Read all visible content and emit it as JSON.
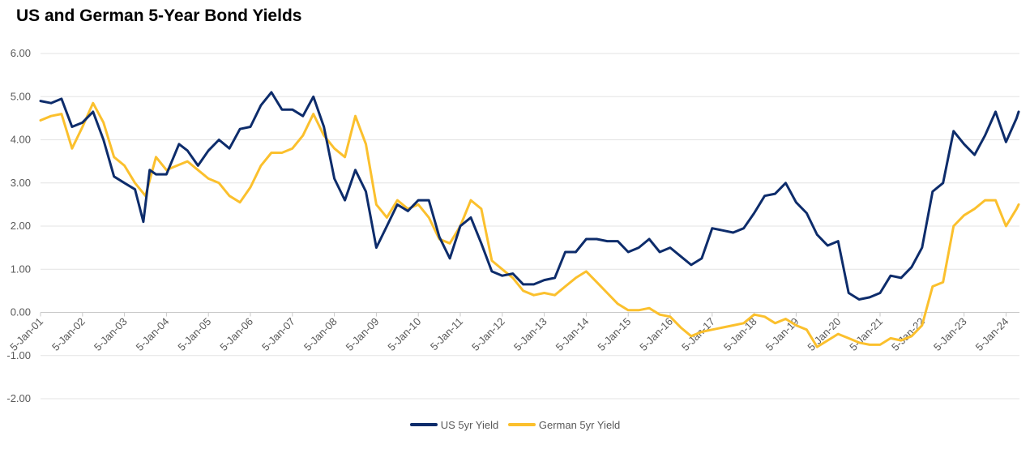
{
  "chart_data": {
    "type": "line",
    "title": "US and German 5-Year Bond Yields",
    "ylim": [
      -2,
      6
    ],
    "y_ticks": [
      "6.00",
      "5.00",
      "4.00",
      "3.00",
      "2.00",
      "1.00",
      "0.00",
      "-1.00",
      "-2.00"
    ],
    "x_ticks": [
      "5-Jan-01",
      "5-Jan-02",
      "5-Jan-03",
      "5-Jan-04",
      "5-Jan-05",
      "5-Jan-06",
      "5-Jan-07",
      "5-Jan-08",
      "5-Jan-09",
      "5-Jan-10",
      "5-Jan-11",
      "5-Jan-12",
      "5-Jan-13",
      "5-Jan-14",
      "5-Jan-15",
      "5-Jan-16",
      "5-Jan-17",
      "5-Jan-18",
      "5-Jan-19",
      "5-Jan-20",
      "5-Jan-21",
      "5-Jan-22",
      "5-Jan-23",
      "5-Jan-24"
    ],
    "grid": true,
    "legend": "bottom",
    "series": [
      {
        "name": "US 5yr Yield",
        "color": "#0d2c6b",
        "points": [
          [
            2001.0,
            4.9
          ],
          [
            2001.25,
            4.85
          ],
          [
            2001.5,
            4.95
          ],
          [
            2001.75,
            4.3
          ],
          [
            2002.0,
            4.4
          ],
          [
            2002.25,
            4.65
          ],
          [
            2002.5,
            4.0
          ],
          [
            2002.75,
            3.15
          ],
          [
            2003.0,
            3.0
          ],
          [
            2003.25,
            2.85
          ],
          [
            2003.45,
            2.1
          ],
          [
            2003.6,
            3.3
          ],
          [
            2003.75,
            3.2
          ],
          [
            2004.0,
            3.2
          ],
          [
            2004.3,
            3.9
          ],
          [
            2004.5,
            3.75
          ],
          [
            2004.75,
            3.4
          ],
          [
            2005.0,
            3.75
          ],
          [
            2005.25,
            4.0
          ],
          [
            2005.5,
            3.8
          ],
          [
            2005.75,
            4.25
          ],
          [
            2006.0,
            4.3
          ],
          [
            2006.25,
            4.8
          ],
          [
            2006.5,
            5.1
          ],
          [
            2006.75,
            4.7
          ],
          [
            2007.0,
            4.7
          ],
          [
            2007.25,
            4.55
          ],
          [
            2007.5,
            5.0
          ],
          [
            2007.75,
            4.3
          ],
          [
            2008.0,
            3.1
          ],
          [
            2008.25,
            2.6
          ],
          [
            2008.5,
            3.3
          ],
          [
            2008.75,
            2.8
          ],
          [
            2009.0,
            1.5
          ],
          [
            2009.25,
            2.0
          ],
          [
            2009.5,
            2.5
          ],
          [
            2009.75,
            2.35
          ],
          [
            2010.0,
            2.6
          ],
          [
            2010.25,
            2.6
          ],
          [
            2010.5,
            1.75
          ],
          [
            2010.75,
            1.25
          ],
          [
            2011.0,
            2.0
          ],
          [
            2011.25,
            2.2
          ],
          [
            2011.5,
            1.6
          ],
          [
            2011.75,
            0.95
          ],
          [
            2012.0,
            0.85
          ],
          [
            2012.25,
            0.9
          ],
          [
            2012.5,
            0.65
          ],
          [
            2012.75,
            0.65
          ],
          [
            2013.0,
            0.75
          ],
          [
            2013.25,
            0.8
          ],
          [
            2013.5,
            1.4
          ],
          [
            2013.75,
            1.4
          ],
          [
            2014.0,
            1.7
          ],
          [
            2014.25,
            1.7
          ],
          [
            2014.5,
            1.65
          ],
          [
            2014.75,
            1.65
          ],
          [
            2015.0,
            1.4
          ],
          [
            2015.25,
            1.5
          ],
          [
            2015.5,
            1.7
          ],
          [
            2015.75,
            1.4
          ],
          [
            2016.0,
            1.5
          ],
          [
            2016.25,
            1.3
          ],
          [
            2016.5,
            1.1
          ],
          [
            2016.75,
            1.25
          ],
          [
            2017.0,
            1.95
          ],
          [
            2017.25,
            1.9
          ],
          [
            2017.5,
            1.85
          ],
          [
            2017.75,
            1.95
          ],
          [
            2018.0,
            2.3
          ],
          [
            2018.25,
            2.7
          ],
          [
            2018.5,
            2.75
          ],
          [
            2018.75,
            3.0
          ],
          [
            2019.0,
            2.55
          ],
          [
            2019.25,
            2.3
          ],
          [
            2019.5,
            1.8
          ],
          [
            2019.75,
            1.55
          ],
          [
            2020.0,
            1.65
          ],
          [
            2020.25,
            0.45
          ],
          [
            2020.5,
            0.3
          ],
          [
            2020.75,
            0.35
          ],
          [
            2021.0,
            0.45
          ],
          [
            2021.25,
            0.85
          ],
          [
            2021.5,
            0.8
          ],
          [
            2021.75,
            1.05
          ],
          [
            2022.0,
            1.5
          ],
          [
            2022.25,
            2.8
          ],
          [
            2022.5,
            3.0
          ],
          [
            2022.75,
            4.2
          ],
          [
            2023.0,
            3.9
          ],
          [
            2023.25,
            3.65
          ],
          [
            2023.5,
            4.1
          ],
          [
            2023.75,
            4.65
          ],
          [
            2024.0,
            3.95
          ],
          [
            2024.25,
            4.5
          ],
          [
            2024.3,
            4.65
          ]
        ]
      },
      {
        "name": "German 5yr Yield",
        "color": "#fbc02d",
        "points": [
          [
            2001.0,
            4.45
          ],
          [
            2001.25,
            4.55
          ],
          [
            2001.5,
            4.6
          ],
          [
            2001.75,
            3.8
          ],
          [
            2002.0,
            4.3
          ],
          [
            2002.25,
            4.85
          ],
          [
            2002.5,
            4.4
          ],
          [
            2002.75,
            3.6
          ],
          [
            2003.0,
            3.4
          ],
          [
            2003.25,
            3.0
          ],
          [
            2003.5,
            2.7
          ],
          [
            2003.75,
            3.6
          ],
          [
            2004.0,
            3.3
          ],
          [
            2004.25,
            3.4
          ],
          [
            2004.5,
            3.5
          ],
          [
            2004.75,
            3.3
          ],
          [
            2005.0,
            3.1
          ],
          [
            2005.25,
            3.0
          ],
          [
            2005.5,
            2.7
          ],
          [
            2005.75,
            2.55
          ],
          [
            2006.0,
            2.9
          ],
          [
            2006.25,
            3.4
          ],
          [
            2006.5,
            3.7
          ],
          [
            2006.75,
            3.7
          ],
          [
            2007.0,
            3.8
          ],
          [
            2007.25,
            4.1
          ],
          [
            2007.5,
            4.6
          ],
          [
            2007.75,
            4.1
          ],
          [
            2008.0,
            3.8
          ],
          [
            2008.25,
            3.6
          ],
          [
            2008.5,
            4.55
          ],
          [
            2008.75,
            3.9
          ],
          [
            2009.0,
            2.5
          ],
          [
            2009.25,
            2.2
          ],
          [
            2009.5,
            2.6
          ],
          [
            2009.75,
            2.4
          ],
          [
            2010.0,
            2.5
          ],
          [
            2010.25,
            2.2
          ],
          [
            2010.5,
            1.7
          ],
          [
            2010.75,
            1.6
          ],
          [
            2011.0,
            2.0
          ],
          [
            2011.25,
            2.6
          ],
          [
            2011.5,
            2.4
          ],
          [
            2011.75,
            1.2
          ],
          [
            2012.0,
            1.0
          ],
          [
            2012.25,
            0.8
          ],
          [
            2012.5,
            0.5
          ],
          [
            2012.75,
            0.4
          ],
          [
            2013.0,
            0.45
          ],
          [
            2013.25,
            0.4
          ],
          [
            2013.5,
            0.6
          ],
          [
            2013.75,
            0.8
          ],
          [
            2014.0,
            0.95
          ],
          [
            2014.25,
            0.7
          ],
          [
            2014.5,
            0.45
          ],
          [
            2014.75,
            0.2
          ],
          [
            2015.0,
            0.05
          ],
          [
            2015.25,
            0.05
          ],
          [
            2015.5,
            0.1
          ],
          [
            2015.75,
            -0.05
          ],
          [
            2016.0,
            -0.1
          ],
          [
            2016.25,
            -0.35
          ],
          [
            2016.5,
            -0.55
          ],
          [
            2016.75,
            -0.45
          ],
          [
            2017.0,
            -0.4
          ],
          [
            2017.25,
            -0.35
          ],
          [
            2017.5,
            -0.3
          ],
          [
            2017.75,
            -0.25
          ],
          [
            2018.0,
            -0.05
          ],
          [
            2018.25,
            -0.1
          ],
          [
            2018.5,
            -0.25
          ],
          [
            2018.75,
            -0.15
          ],
          [
            2019.0,
            -0.3
          ],
          [
            2019.25,
            -0.4
          ],
          [
            2019.5,
            -0.8
          ],
          [
            2019.75,
            -0.65
          ],
          [
            2020.0,
            -0.5
          ],
          [
            2020.25,
            -0.6
          ],
          [
            2020.5,
            -0.7
          ],
          [
            2020.75,
            -0.75
          ],
          [
            2021.0,
            -0.75
          ],
          [
            2021.25,
            -0.6
          ],
          [
            2021.5,
            -0.65
          ],
          [
            2021.75,
            -0.55
          ],
          [
            2022.0,
            -0.3
          ],
          [
            2022.25,
            0.6
          ],
          [
            2022.5,
            0.7
          ],
          [
            2022.75,
            2.0
          ],
          [
            2023.0,
            2.25
          ],
          [
            2023.25,
            2.4
          ],
          [
            2023.5,
            2.6
          ],
          [
            2023.75,
            2.6
          ],
          [
            2024.0,
            2.0
          ],
          [
            2024.25,
            2.4
          ],
          [
            2024.3,
            2.5
          ]
        ]
      }
    ]
  }
}
